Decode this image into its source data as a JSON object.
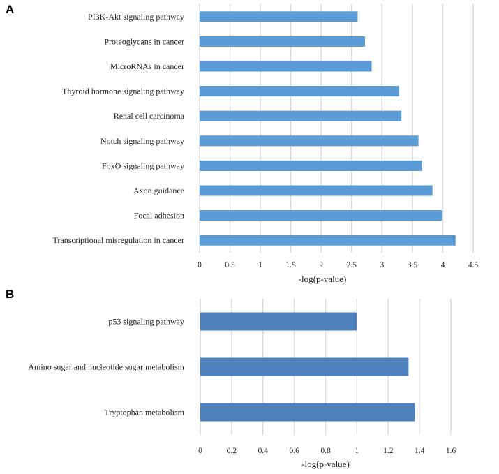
{
  "chart_data": [
    {
      "panel": "A",
      "type": "bar",
      "orientation": "horizontal",
      "title": "",
      "xlabel": "-log(p-value)",
      "ylabel": "",
      "xlim": [
        0,
        4.5
      ],
      "xticks": [
        "0",
        "0.5",
        "1",
        "1.5",
        "2",
        "2.5",
        "3",
        "3.5",
        "4",
        "4.5"
      ],
      "grid": true,
      "color": "#5b9bd5",
      "categories": [
        "PI3K-Akt signaling pathway",
        "Proteoglycans in cancer",
        "MicroRNAs in cancer",
        "Thyroid hormone signaling pathway",
        "Renal cell carcinoma",
        "Notch signaling pathway",
        "FoxO signaling pathway",
        "Axon guidance",
        "Focal adhesion",
        "Transcriptional misregulation in cancer"
      ],
      "values": [
        2.6,
        2.72,
        2.83,
        3.28,
        3.32,
        3.6,
        3.66,
        3.83,
        3.99,
        4.21
      ]
    },
    {
      "panel": "B",
      "type": "bar",
      "orientation": "horizontal",
      "title": "",
      "xlabel": "-log(p-value)",
      "ylabel": "",
      "xlim": [
        0,
        1.6
      ],
      "xticks": [
        "0",
        "0.2",
        "0.4",
        "0.6",
        "0.8",
        "1",
        "1.2",
        "1.4",
        "1.6"
      ],
      "grid": true,
      "color": "#4f81bd",
      "categories": [
        "p53 signaling pathway",
        "Amino sugar and nucleotide sugar metabolism",
        "Tryptophan metabolism"
      ],
      "values": [
        1.0,
        1.33,
        1.37
      ]
    }
  ]
}
